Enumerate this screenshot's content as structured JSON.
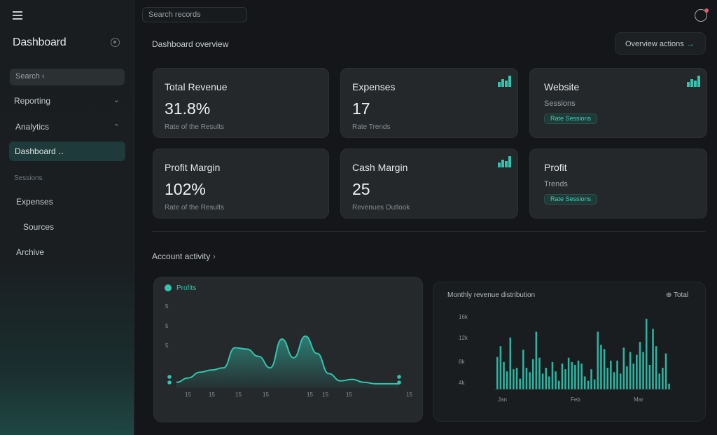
{
  "app": {
    "brand": "Dashboard",
    "top_search_placeholder": "Search records",
    "page_title": "Dashboard overview",
    "top_button": "Overview actions",
    "top_button_icon": "arrow-right-icon"
  },
  "sidebar": {
    "search": "Search",
    "items": [
      {
        "label": "Reporting",
        "chevron": "⌄"
      },
      {
        "label": "Analytics",
        "chevron": "⌃"
      },
      {
        "label": "Dashboard"
      },
      {
        "label": "Sessions"
      },
      {
        "label": "Expenses"
      },
      {
        "label": "Sources"
      },
      {
        "label": "Archive"
      }
    ]
  },
  "cards": [
    {
      "title": "Total Revenue",
      "value": "31.8%",
      "sub": "Rate of the Results"
    },
    {
      "title": "Expenses",
      "value": "17",
      "sub": "Rate Trends"
    },
    {
      "title": "Website",
      "sub": "Sessions",
      "pill": "Rate Sessions"
    },
    {
      "title": "Profit Margin",
      "value": "102%",
      "sub": "Rate of the Results"
    },
    {
      "title": "Cash Margin",
      "value": "25",
      "sub": "Revenues Outlook"
    },
    {
      "title": "Profit",
      "sub": "Trends",
      "pill": "Rate Sessions"
    }
  ],
  "section_title": "Account activity",
  "chart_data": [
    {
      "type": "area",
      "legend": "Profits",
      "x": [
        "1",
        "2",
        "3",
        "4",
        "5",
        "6",
        "7",
        "8",
        "9",
        "10",
        "11",
        "12",
        "13",
        "14",
        "15",
        "16",
        "17",
        "18",
        "19",
        "20"
      ],
      "values": [
        8,
        14,
        22,
        25,
        28,
        56,
        54,
        44,
        28,
        68,
        42,
        72,
        48,
        20,
        10,
        12,
        8,
        6,
        6,
        6
      ],
      "ylim": [
        0,
        100
      ],
      "y_ticks": [
        "5",
        "5",
        "5"
      ],
      "x_ticks": [
        "15",
        "15",
        "15",
        "15",
        "15",
        "15",
        "15",
        "15"
      ],
      "color": "#34c3ae"
    },
    {
      "type": "bar",
      "title": "Monthly revenue distribution",
      "legend": "Total",
      "values": [
        45,
        60,
        38,
        25,
        72,
        28,
        30,
        15,
        55,
        30,
        24,
        42,
        80,
        44,
        22,
        30,
        18,
        38,
        25,
        12,
        36,
        28,
        44,
        38,
        34,
        40,
        36,
        18,
        12,
        28,
        14,
        80,
        62,
        56,
        30,
        40,
        24,
        40,
        22,
        58,
        32,
        52,
        36,
        48,
        66,
        52,
        98,
        34,
        84,
        60,
        22,
        30,
        50,
        8
      ],
      "ylim": [
        0,
        100
      ],
      "y_ticks": [
        "16k",
        "12k",
        "8k",
        "4k"
      ],
      "x_ticks": [
        "Jan",
        "Feb",
        "Mar"
      ],
      "color": "#2fb3a0"
    }
  ]
}
